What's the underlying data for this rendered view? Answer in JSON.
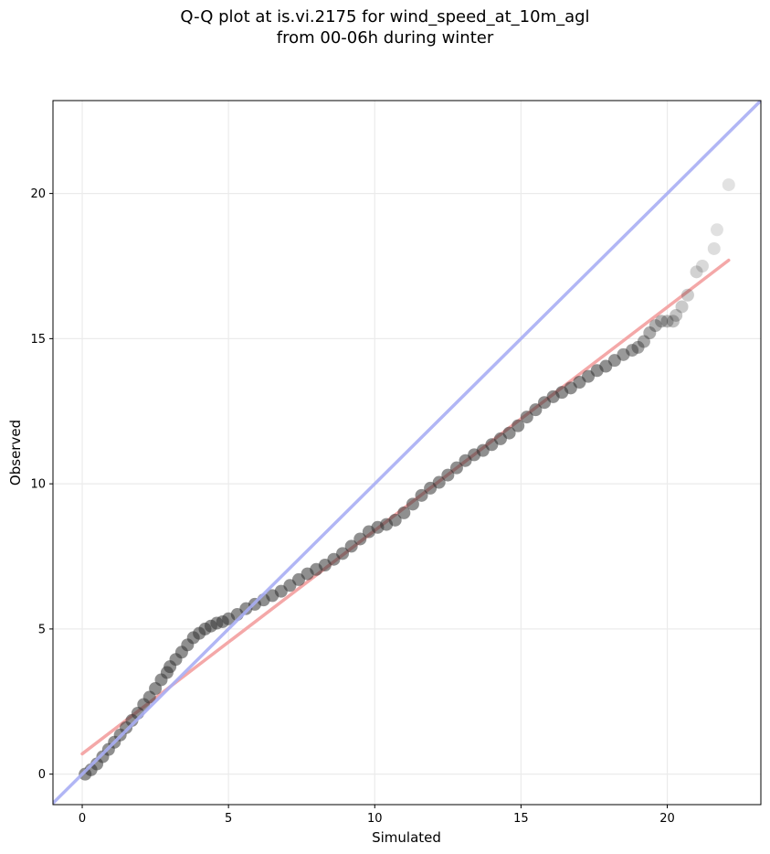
{
  "chart_data": {
    "type": "scatter",
    "title_line1": "Q-Q plot at is.vi.2175 for wind_speed_at_10m_agl",
    "title_line2": "from 00-06h during winter",
    "xlabel": "Simulated",
    "ylabel": "Observed",
    "xlim": [
      -1.0,
      23.2
    ],
    "ylim": [
      -1.05,
      23.2
    ],
    "xticks": [
      0,
      5,
      10,
      15,
      20
    ],
    "yticks": [
      0,
      5,
      10,
      15,
      20
    ],
    "grid": true,
    "legend": "none",
    "colors": {
      "points": "#333333",
      "identity_line": "#a9aef4",
      "fit_line": "#f4a8a8",
      "grid": "#ebebeb"
    },
    "identity_line": {
      "x": [
        -1.0,
        23.2
      ],
      "y": [
        -1.0,
        23.2
      ]
    },
    "fit_line": {
      "x": [
        0.0,
        22.1
      ],
      "y": [
        0.7,
        17.7
      ]
    },
    "series": [
      {
        "x": [
          0.1,
          0.3,
          0.5,
          0.7,
          0.9,
          1.1,
          1.3,
          1.5,
          1.7,
          1.9,
          2.1,
          2.3,
          2.5,
          2.7,
          2.9,
          3.0,
          3.2,
          3.4,
          3.6,
          3.8,
          4.0,
          4.2,
          4.4,
          4.6,
          4.8,
          5.0,
          5.3,
          5.6,
          5.9,
          6.2,
          6.5,
          6.8,
          7.1,
          7.4,
          7.7,
          8.0,
          8.3,
          8.6,
          8.9,
          9.2,
          9.5,
          9.8,
          10.1,
          10.4,
          10.7,
          11.0,
          11.3,
          11.6,
          11.9,
          12.2,
          12.5,
          12.8,
          13.1,
          13.4,
          13.7,
          14.0,
          14.3,
          14.6,
          14.9,
          15.2,
          15.5,
          15.8,
          16.1,
          16.4,
          16.7,
          17.0,
          17.3,
          17.6,
          17.9,
          18.2,
          18.5,
          18.8,
          19.0,
          19.2,
          19.4,
          19.6,
          19.8,
          20.0,
          20.2,
          20.3,
          20.5,
          20.7,
          21.0,
          21.2,
          21.6,
          21.7,
          22.1
        ],
        "y": [
          0.0,
          0.15,
          0.35,
          0.6,
          0.85,
          1.1,
          1.35,
          1.6,
          1.85,
          2.1,
          2.4,
          2.65,
          2.95,
          3.25,
          3.5,
          3.7,
          3.95,
          4.2,
          4.45,
          4.7,
          4.85,
          5.0,
          5.1,
          5.2,
          5.25,
          5.35,
          5.5,
          5.7,
          5.85,
          6.0,
          6.15,
          6.3,
          6.5,
          6.7,
          6.9,
          7.05,
          7.2,
          7.4,
          7.6,
          7.85,
          8.1,
          8.35,
          8.5,
          8.6,
          8.75,
          9.0,
          9.3,
          9.6,
          9.85,
          10.05,
          10.3,
          10.55,
          10.8,
          11.0,
          11.15,
          11.35,
          11.55,
          11.75,
          12.0,
          12.3,
          12.55,
          12.8,
          13.0,
          13.15,
          13.3,
          13.5,
          13.7,
          13.9,
          14.05,
          14.25,
          14.45,
          14.6,
          14.7,
          14.9,
          15.2,
          15.45,
          15.6,
          15.6,
          15.6,
          15.8,
          16.1,
          16.5,
          17.3,
          17.5,
          18.1,
          18.75,
          20.3
        ]
      }
    ]
  }
}
